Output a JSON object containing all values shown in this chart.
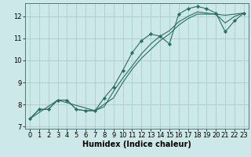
{
  "background_color": "#cce8e8",
  "grid_color": "#aacccc",
  "line_color": "#2a6e62",
  "marker_color": "#2a6e62",
  "xlabel": "Humidex (Indice chaleur)",
  "xlabel_fontsize": 7,
  "tick_fontsize": 6,
  "ylim": [
    6.9,
    12.6
  ],
  "xlim": [
    -0.5,
    23.5
  ],
  "yticks": [
    7,
    8,
    9,
    10,
    11,
    12
  ],
  "xticks": [
    0,
    1,
    2,
    3,
    4,
    5,
    6,
    7,
    8,
    9,
    10,
    11,
    12,
    13,
    14,
    15,
    16,
    17,
    18,
    19,
    20,
    21,
    22,
    23
  ],
  "series1_x": [
    0,
    1,
    2,
    3,
    4,
    5,
    6,
    7,
    8,
    9,
    10,
    11,
    12,
    13,
    14,
    15,
    16,
    17,
    18,
    19,
    20,
    21,
    22,
    23
  ],
  "series1_y": [
    7.35,
    7.78,
    7.78,
    8.2,
    8.2,
    7.78,
    7.72,
    7.72,
    8.3,
    8.8,
    9.55,
    10.35,
    10.9,
    11.2,
    11.1,
    10.75,
    12.1,
    12.35,
    12.45,
    12.35,
    12.15,
    11.3,
    11.8,
    12.15
  ],
  "series2_x": [
    0,
    1,
    2,
    3,
    4,
    5,
    6,
    7,
    8,
    9,
    10,
    11,
    12,
    13,
    14,
    15,
    16,
    17,
    18,
    19,
    20,
    21,
    22,
    23
  ],
  "series2_y": [
    7.35,
    7.78,
    7.78,
    8.2,
    8.2,
    7.78,
    7.72,
    7.72,
    7.9,
    8.6,
    9.2,
    9.75,
    10.3,
    10.75,
    11.1,
    11.35,
    11.75,
    12.0,
    12.2,
    12.15,
    12.1,
    11.7,
    12.0,
    12.15
  ],
  "series3_x": [
    0,
    3,
    7,
    9,
    10,
    11,
    12,
    13,
    14,
    15,
    16,
    17,
    18,
    19,
    20,
    21,
    22,
    23
  ],
  "series3_y": [
    7.35,
    8.2,
    7.72,
    8.3,
    9.0,
    9.6,
    10.1,
    10.5,
    10.9,
    11.2,
    11.6,
    11.9,
    12.1,
    12.1,
    12.1,
    12.05,
    12.1,
    12.15
  ]
}
